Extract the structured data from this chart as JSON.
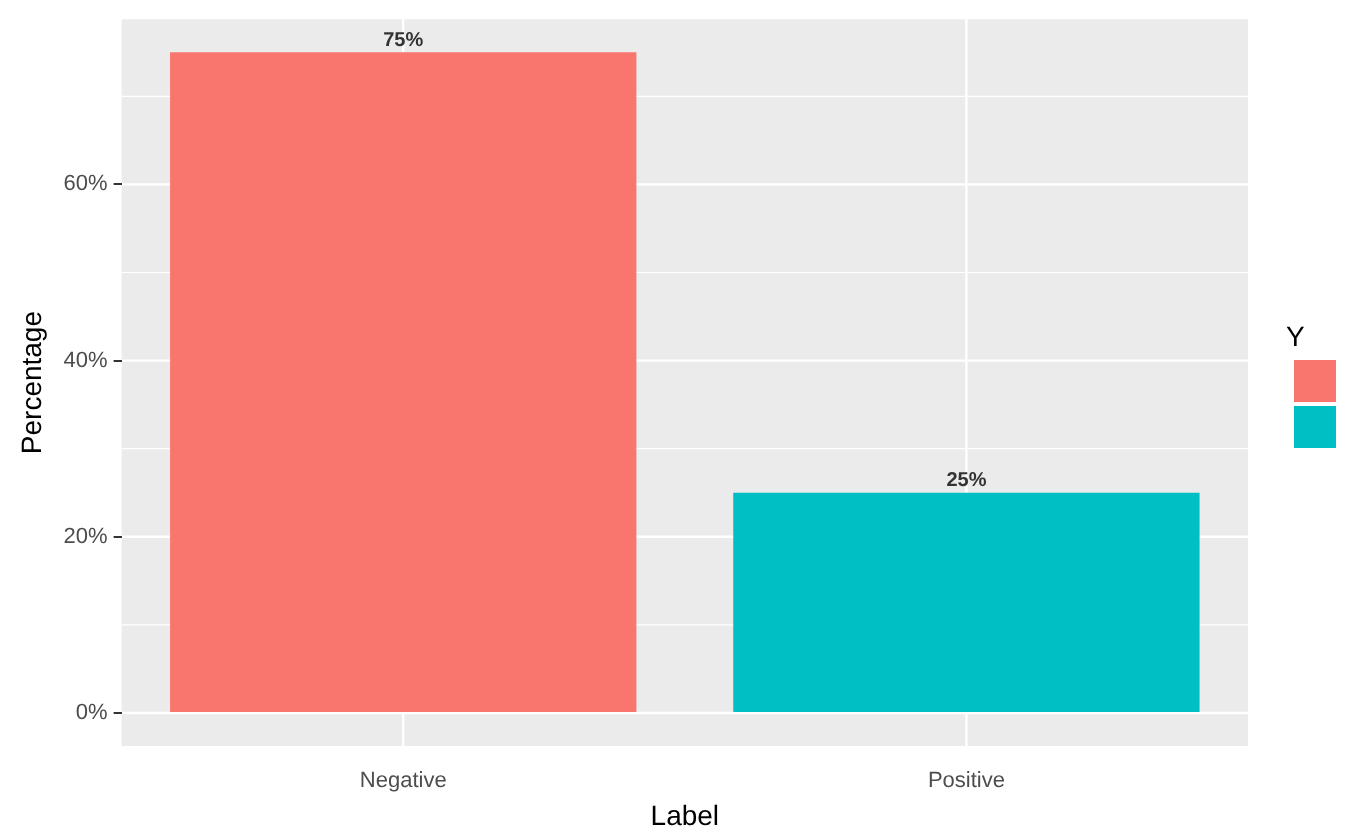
{
  "chart_data": {
    "type": "bar",
    "xlabel": "Label",
    "ylabel": "Percentage",
    "legend_title": "Y",
    "grid": true,
    "categories": [
      "Negative",
      "Positive"
    ],
    "values": [
      75,
      25
    ],
    "colors": [
      "#f8766d",
      "#00bfc4"
    ],
    "value_labels": [
      "75%",
      "25%"
    ],
    "ylim": [
      -3.75,
      78.75
    ],
    "yticks": [
      {
        "value": 0,
        "label": "0%"
      },
      {
        "value": 10,
        "label": null
      },
      {
        "value": 20,
        "label": "20%"
      },
      {
        "value": 30,
        "label": null
      },
      {
        "value": 40,
        "label": "40%"
      },
      {
        "value": 50,
        "label": null
      },
      {
        "value": 60,
        "label": "60%"
      },
      {
        "value": 70,
        "label": null
      }
    ]
  }
}
